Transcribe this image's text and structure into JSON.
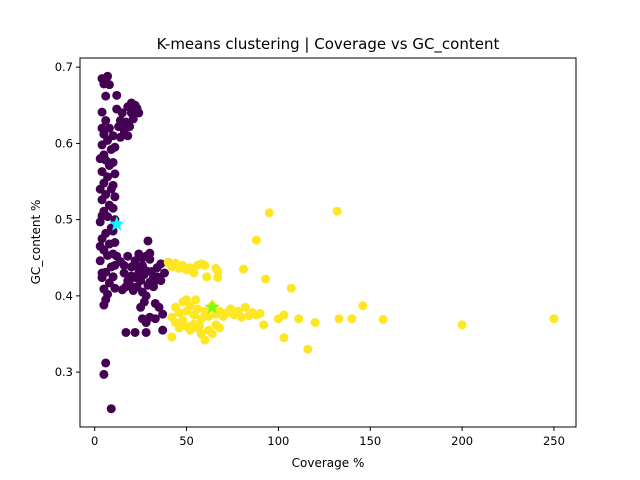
{
  "chart_data": {
    "type": "scatter",
    "title": "K-means clustering | Coverage vs GC_content",
    "xlabel": "Coverage %",
    "ylabel": "GC_content %",
    "xlim": [
      -8,
      262
    ],
    "ylim": [
      0.228,
      0.712
    ],
    "xticks": [
      0,
      50,
      100,
      150,
      200,
      250
    ],
    "yticks": [
      0.3,
      0.4,
      0.5,
      0.6,
      0.7
    ],
    "grid": false,
    "colors": {
      "cluster_0": "#440154",
      "cluster_1": "#fde725",
      "centroid_0": "#00ffff",
      "centroid_1": "#7fff00"
    },
    "series": [
      {
        "color": "#440154",
        "points": [
          [
            4,
            0.685
          ],
          [
            7,
            0.688
          ],
          [
            5,
            0.678
          ],
          [
            8,
            0.677
          ],
          [
            6,
            0.662
          ],
          [
            12,
            0.663
          ],
          [
            4,
            0.641
          ],
          [
            6,
            0.63
          ],
          [
            8,
            0.62
          ],
          [
            5,
            0.612
          ],
          [
            7,
            0.604
          ],
          [
            4,
            0.598
          ],
          [
            9,
            0.592
          ],
          [
            5,
            0.585
          ],
          [
            6,
            0.578
          ],
          [
            8,
            0.571
          ],
          [
            4,
            0.563
          ],
          [
            7,
            0.556
          ],
          [
            5,
            0.548
          ],
          [
            9,
            0.54
          ],
          [
            6,
            0.533
          ],
          [
            4,
            0.526
          ],
          [
            8,
            0.519
          ],
          [
            5,
            0.511
          ],
          [
            7,
            0.504
          ],
          [
            3,
            0.497
          ],
          [
            9,
            0.489
          ],
          [
            6,
            0.482
          ],
          [
            4,
            0.475
          ],
          [
            8,
            0.468
          ],
          [
            5,
            0.46
          ],
          [
            7,
            0.453
          ],
          [
            3,
            0.446
          ],
          [
            9,
            0.438
          ],
          [
            6,
            0.431
          ],
          [
            4,
            0.424
          ],
          [
            8,
            0.417
          ],
          [
            5,
            0.409
          ],
          [
            7,
            0.402
          ],
          [
            6,
            0.395
          ],
          [
            5,
            0.388
          ],
          [
            10,
            0.61
          ],
          [
            11,
            0.595
          ],
          [
            10,
            0.575
          ],
          [
            11,
            0.56
          ],
          [
            10,
            0.545
          ],
          [
            11,
            0.53
          ],
          [
            10,
            0.515
          ],
          [
            11,
            0.5
          ],
          [
            10,
            0.485
          ],
          [
            11,
            0.47
          ],
          [
            10,
            0.455
          ],
          [
            11,
            0.44
          ],
          [
            10,
            0.425
          ],
          [
            11,
            0.41
          ],
          [
            3,
            0.54
          ],
          [
            4,
            0.505
          ],
          [
            3,
            0.465
          ],
          [
            4,
            0.43
          ],
          [
            3,
            0.58
          ],
          [
            4,
            0.62
          ],
          [
            12,
            0.645
          ],
          [
            14,
            0.63
          ],
          [
            13,
            0.622
          ],
          [
            15,
            0.64
          ],
          [
            16,
            0.612
          ],
          [
            18,
            0.648
          ],
          [
            20,
            0.653
          ],
          [
            22,
            0.65
          ],
          [
            24,
            0.64
          ],
          [
            17,
            0.628
          ],
          [
            19,
            0.622
          ],
          [
            21,
            0.632
          ],
          [
            23,
            0.646
          ],
          [
            14,
            0.608
          ],
          [
            16,
            0.618
          ],
          [
            18,
            0.61
          ],
          [
            20,
            0.64
          ],
          [
            12,
            0.452
          ],
          [
            14,
            0.445
          ],
          [
            16,
            0.44
          ],
          [
            18,
            0.452
          ],
          [
            20,
            0.438
          ],
          [
            22,
            0.446
          ],
          [
            24,
            0.43
          ],
          [
            26,
            0.44
          ],
          [
            28,
            0.433
          ],
          [
            30,
            0.448
          ],
          [
            32,
            0.425
          ],
          [
            34,
            0.437
          ],
          [
            36,
            0.442
          ],
          [
            38,
            0.43
          ],
          [
            40,
            0.444
          ],
          [
            25,
            0.42
          ],
          [
            27,
            0.428
          ],
          [
            29,
            0.414
          ],
          [
            31,
            0.432
          ],
          [
            33,
            0.42
          ],
          [
            22,
            0.424
          ],
          [
            24,
            0.436
          ],
          [
            20,
            0.426
          ],
          [
            18,
            0.42
          ],
          [
            16,
            0.43
          ],
          [
            15,
            0.408
          ],
          [
            17,
            0.412
          ],
          [
            19,
            0.415
          ],
          [
            21,
            0.407
          ],
          [
            23,
            0.412
          ],
          [
            26,
            0.405
          ],
          [
            28,
            0.4
          ],
          [
            30,
            0.418
          ],
          [
            32,
            0.412
          ],
          [
            34,
            0.425
          ],
          [
            36,
            0.42
          ],
          [
            28,
            0.452
          ],
          [
            30,
            0.456
          ],
          [
            26,
            0.45
          ],
          [
            24,
            0.455
          ],
          [
            29,
            0.472
          ],
          [
            25,
            0.385
          ],
          [
            27,
            0.392
          ],
          [
            33,
            0.39
          ],
          [
            35,
            0.385
          ],
          [
            37,
            0.376
          ],
          [
            33,
            0.37
          ],
          [
            30,
            0.372
          ],
          [
            28,
            0.365
          ],
          [
            37,
            0.355
          ],
          [
            22,
            0.352
          ],
          [
            28,
            0.352
          ],
          [
            17,
            0.352
          ],
          [
            26,
            0.37
          ],
          [
            6,
            0.312
          ],
          [
            5,
            0.297
          ],
          [
            9,
            0.252
          ]
        ]
      },
      {
        "color": "#fde725",
        "points": [
          [
            40,
            0.444
          ],
          [
            42,
            0.438
          ],
          [
            44,
            0.443
          ],
          [
            46,
            0.436
          ],
          [
            48,
            0.44
          ],
          [
            50,
            0.434
          ],
          [
            52,
            0.437
          ],
          [
            54,
            0.43
          ],
          [
            56,
            0.44
          ],
          [
            58,
            0.442
          ],
          [
            60,
            0.44
          ],
          [
            66,
            0.436
          ],
          [
            67,
            0.432
          ],
          [
            61,
            0.425
          ],
          [
            67,
            0.424
          ],
          [
            42,
            0.372
          ],
          [
            44,
            0.385
          ],
          [
            46,
            0.378
          ],
          [
            48,
            0.392
          ],
          [
            50,
            0.38
          ],
          [
            52,
            0.387
          ],
          [
            54,
            0.375
          ],
          [
            56,
            0.383
          ],
          [
            58,
            0.37
          ],
          [
            60,
            0.38
          ],
          [
            62,
            0.373
          ],
          [
            64,
            0.387
          ],
          [
            66,
            0.376
          ],
          [
            68,
            0.38
          ],
          [
            70,
            0.373
          ],
          [
            72,
            0.378
          ],
          [
            74,
            0.383
          ],
          [
            76,
            0.375
          ],
          [
            78,
            0.38
          ],
          [
            80,
            0.372
          ],
          [
            82,
            0.385
          ],
          [
            84,
            0.374
          ],
          [
            86,
            0.378
          ],
          [
            88,
            0.375
          ],
          [
            90,
            0.377
          ],
          [
            44,
            0.365
          ],
          [
            46,
            0.358
          ],
          [
            48,
            0.368
          ],
          [
            50,
            0.36
          ],
          [
            52,
            0.355
          ],
          [
            54,
            0.363
          ],
          [
            56,
            0.358
          ],
          [
            58,
            0.35
          ],
          [
            60,
            0.342
          ],
          [
            62,
            0.355
          ],
          [
            64,
            0.35
          ],
          [
            66,
            0.362
          ],
          [
            68,
            0.358
          ],
          [
            50,
            0.395
          ],
          [
            55,
            0.395
          ],
          [
            57,
            0.36
          ],
          [
            42,
            0.346
          ],
          [
            81,
            0.435
          ],
          [
            88,
            0.473
          ],
          [
            95,
            0.509
          ],
          [
            93,
            0.422
          ],
          [
            107,
            0.41
          ],
          [
            92,
            0.362
          ],
          [
            100,
            0.37
          ],
          [
            103,
            0.375
          ],
          [
            103,
            0.345
          ],
          [
            111,
            0.37
          ],
          [
            116,
            0.33
          ],
          [
            120,
            0.365
          ],
          [
            132,
            0.511
          ],
          [
            133,
            0.37
          ],
          [
            140,
            0.37
          ],
          [
            146,
            0.387
          ],
          [
            157,
            0.369
          ],
          [
            200,
            0.362
          ],
          [
            250,
            0.37
          ]
        ]
      }
    ],
    "centroids": [
      {
        "x": 12,
        "y": 0.494,
        "color": "#00ffff"
      },
      {
        "x": 64,
        "y": 0.385,
        "color": "#7fff00"
      }
    ]
  }
}
